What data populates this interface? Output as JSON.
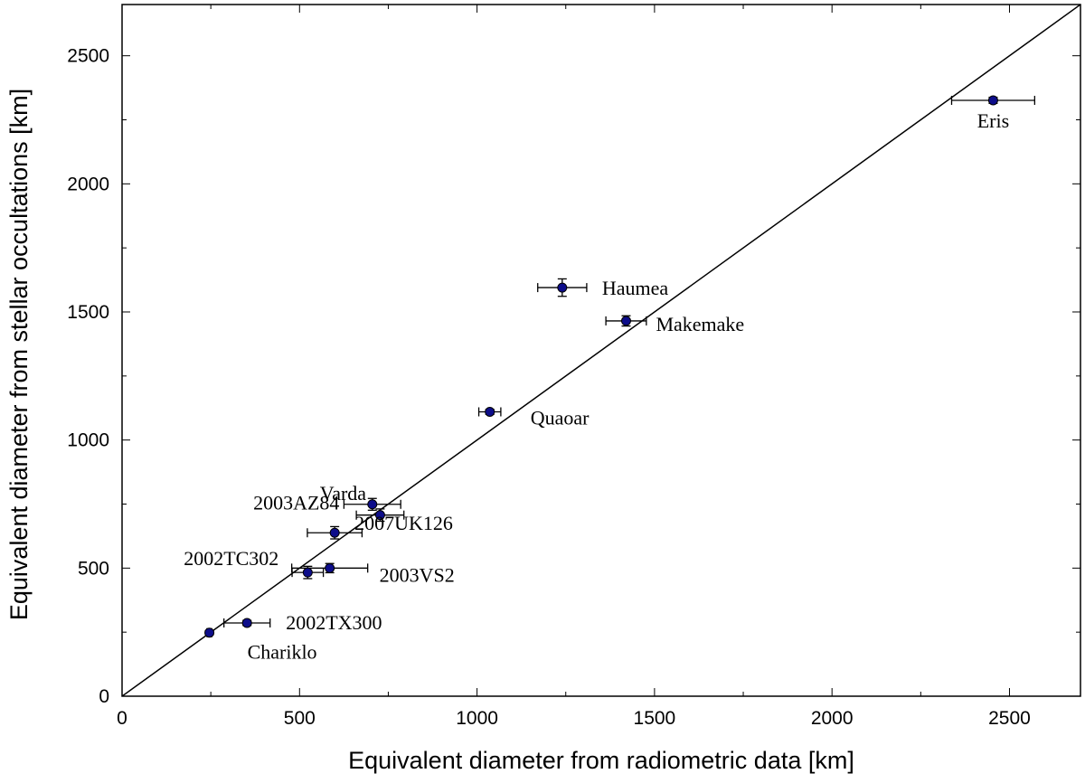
{
  "chart_data": {
    "type": "scatter",
    "title": "",
    "xlabel": "Equivalent diameter from radiometric data [km]",
    "ylabel": "Equivalent diameter from stellar occultations [km]",
    "xlim": [
      0,
      2700
    ],
    "ylim": [
      0,
      2700
    ],
    "xticks": [
      0,
      500,
      1000,
      1500,
      2000,
      2500
    ],
    "yticks": [
      0,
      500,
      1000,
      1500,
      2000,
      2500
    ],
    "grid": false,
    "legend": "none",
    "reference_line": {
      "from": [
        0,
        0
      ],
      "to": [
        2700,
        2700
      ],
      "description": "y = x"
    },
    "marker_color": "#0d0d8a",
    "points": [
      {
        "name": "Eris",
        "x": 2454,
        "y": 2326,
        "xerr": 117,
        "yerr": 12
      },
      {
        "name": "Haumea",
        "x": 1240,
        "y": 1595,
        "xerr": 69,
        "yerr": 34
      },
      {
        "name": "Makemake",
        "x": 1420,
        "y": 1465,
        "xerr": 57,
        "yerr": 20
      },
      {
        "name": "Quaoar",
        "x": 1036,
        "y": 1110,
        "xerr": 31,
        "yerr": 10
      },
      {
        "name": "Varda",
        "x": 705,
        "y": 749,
        "xerr": 80,
        "yerr": 23
      },
      {
        "name": "2003AZ84",
        "x": 727,
        "y": 707,
        "xerr": 67,
        "yerr": 24
      },
      {
        "name": "2007UK126",
        "x": 599,
        "y": 638,
        "xerr": 77,
        "yerr": 24
      },
      {
        "name": "2002TC302",
        "x": 523,
        "y": 483,
        "xerr": 44,
        "yerr": 24
      },
      {
        "name": "2003VS2",
        "x": 585,
        "y": 500,
        "xerr": 107,
        "yerr": 18
      },
      {
        "name": "2002TX300",
        "x": 352,
        "y": 286,
        "xerr": 65,
        "yerr": 10
      },
      {
        "name": "Chariklo",
        "x": 246,
        "y": 248,
        "xerr": 7,
        "yerr": 8
      }
    ]
  }
}
